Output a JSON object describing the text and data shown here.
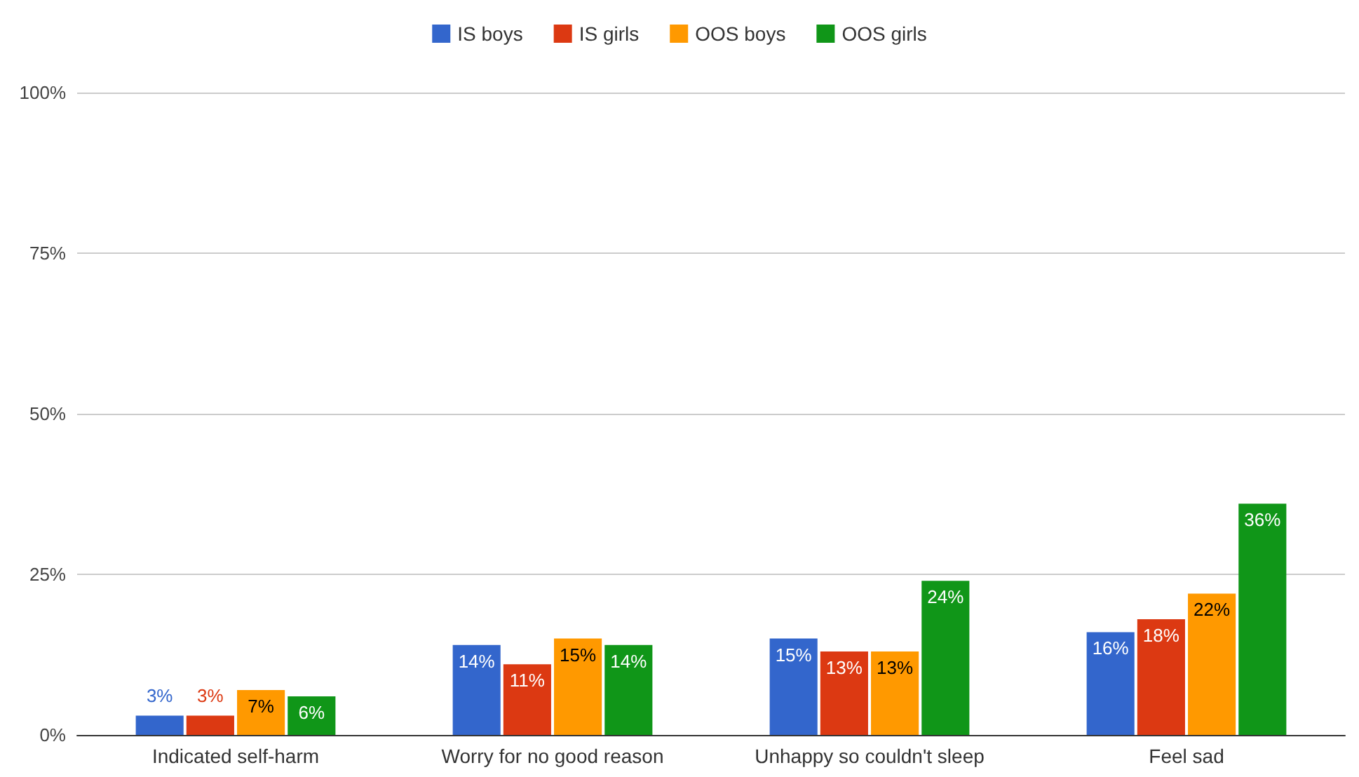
{
  "chart_data": {
    "type": "bar",
    "categories": [
      "Indicated self-harm",
      "Worry for no good reason",
      "Unhappy so couldn't sleep",
      "Feel sad"
    ],
    "series": [
      {
        "name": "IS boys",
        "color": "#3366cc",
        "values": [
          3,
          14,
          15,
          16
        ],
        "value_labels": [
          "3%",
          "14%",
          "15%",
          "16%"
        ]
      },
      {
        "name": "IS girls",
        "color": "#dc3912",
        "values": [
          3,
          11,
          13,
          18
        ],
        "value_labels": [
          "3%",
          "11%",
          "13%",
          "18%"
        ]
      },
      {
        "name": "OOS boys",
        "color": "#ff9900",
        "values": [
          7,
          15,
          13,
          22
        ],
        "value_labels": [
          "7%",
          "15%",
          "13%",
          "22%"
        ]
      },
      {
        "name": "OOS girls",
        "color": "#109618",
        "values": [
          6,
          14,
          24,
          36
        ],
        "value_labels": [
          "6%",
          "14%",
          "24%",
          "36%"
        ]
      }
    ],
    "ylim": [
      0,
      100
    ],
    "yticks": [
      {
        "value": 0,
        "label": "0%"
      },
      {
        "value": 25,
        "label": "25%"
      },
      {
        "value": 50,
        "label": "50%"
      },
      {
        "value": 75,
        "label": "75%"
      },
      {
        "value": 100,
        "label": "100%"
      }
    ],
    "grid": "y",
    "legend": "top"
  }
}
